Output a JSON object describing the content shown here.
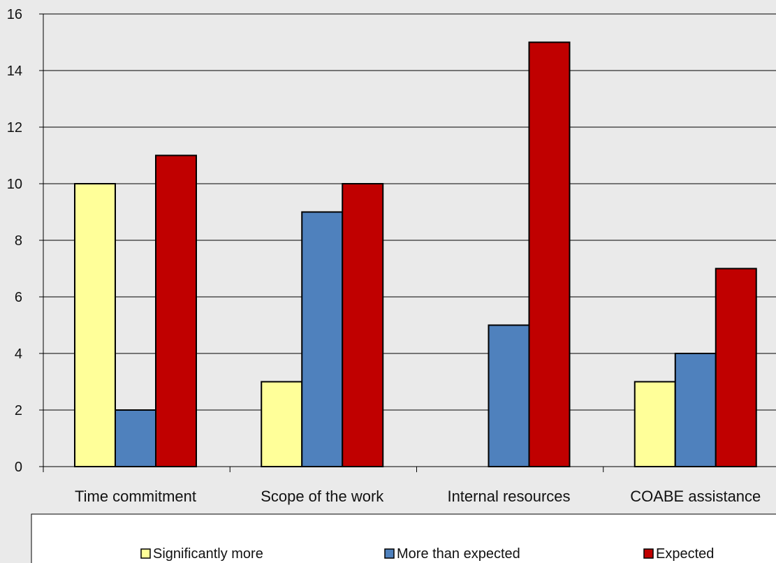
{
  "chart_data": {
    "type": "bar",
    "categories": [
      "Time commitment",
      "Scope of the work",
      "Internal resources",
      "COABE assistance"
    ],
    "series": [
      {
        "name": "Significantly more",
        "values": [
          10,
          3,
          0,
          3
        ],
        "color": "#ffff99"
      },
      {
        "name": "More than expected",
        "values": [
          2,
          9,
          5,
          4
        ],
        "color": "#4f81bd"
      },
      {
        "name": "Expected",
        "values": [
          11,
          10,
          15,
          7
        ],
        "color": "#c00000"
      }
    ],
    "ylim": [
      0,
      16
    ],
    "yticks": [
      0,
      2,
      4,
      6,
      8,
      10,
      12,
      14,
      16
    ],
    "grid": true,
    "legend_position": "bottom",
    "title": "",
    "xlabel": "",
    "ylabel": ""
  }
}
